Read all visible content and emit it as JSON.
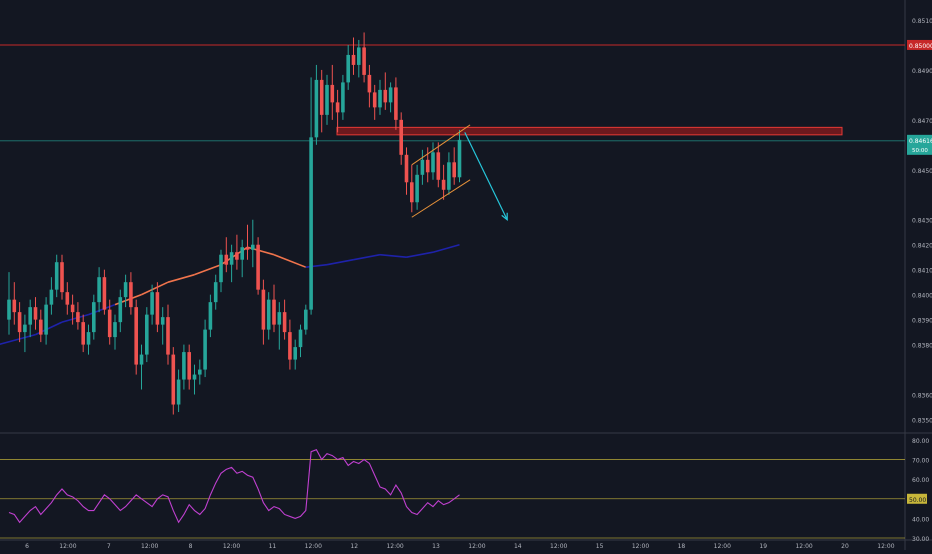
{
  "chart_data": [
    {
      "type": "candlestick",
      "panel": "price",
      "grid": false,
      "y_axis_side": "right",
      "ylim": [
        0.8345,
        0.8518
      ],
      "y_ticks": [
        "0.85100",
        "0.84900",
        "0.84700",
        "0.84500",
        "0.84300",
        "0.84200",
        "0.84100",
        "0.84000",
        "0.83900",
        "0.83800",
        "0.83600",
        "0.83500"
      ],
      "x_ticks": [
        "6",
        "12:00",
        "7",
        "12:00",
        "8",
        "12:00",
        "11",
        "12:00",
        "12",
        "12:00",
        "13",
        "12:00",
        "14",
        "12:00",
        "15",
        "12:00",
        "18",
        "12:00",
        "19",
        "12:00",
        "20",
        "12:00"
      ],
      "price_labels": {
        "resistance": "0.85000",
        "last": "0.84616",
        "countdown": "50:00"
      },
      "horizontal_levels": [
        0.85,
        0.84616
      ],
      "resistance_zone": [
        0.8464,
        0.8467
      ],
      "candles": [
        [
          0,
          0.839,
          0.8409,
          0.8384,
          0.8398
        ],
        [
          1,
          0.8398,
          0.8405,
          0.8388,
          0.8393
        ],
        [
          2,
          0.8393,
          0.8397,
          0.8381,
          0.8385
        ],
        [
          3,
          0.8385,
          0.8392,
          0.8377,
          0.8388
        ],
        [
          4,
          0.8388,
          0.8398,
          0.8383,
          0.8395
        ],
        [
          5,
          0.8395,
          0.8399,
          0.8386,
          0.839
        ],
        [
          6,
          0.839,
          0.8394,
          0.8381,
          0.8384
        ],
        [
          7,
          0.8384,
          0.8399,
          0.838,
          0.8396
        ],
        [
          8,
          0.8396,
          0.8407,
          0.8392,
          0.8402
        ],
        [
          9,
          0.8402,
          0.8416,
          0.8399,
          0.8413
        ],
        [
          10,
          0.8413,
          0.8416,
          0.8398,
          0.8401
        ],
        [
          11,
          0.8401,
          0.8405,
          0.8392,
          0.8396
        ],
        [
          12,
          0.8396,
          0.84,
          0.8388,
          0.8393
        ],
        [
          13,
          0.8393,
          0.8397,
          0.8386,
          0.8389
        ],
        [
          14,
          0.8389,
          0.8392,
          0.8377,
          0.838
        ],
        [
          15,
          0.838,
          0.8388,
          0.8376,
          0.8385
        ],
        [
          16,
          0.8385,
          0.84,
          0.8382,
          0.8397
        ],
        [
          17,
          0.8397,
          0.8411,
          0.8393,
          0.8407
        ],
        [
          18,
          0.8407,
          0.841,
          0.8392,
          0.8394
        ],
        [
          19,
          0.8394,
          0.8398,
          0.838,
          0.8383
        ],
        [
          20,
          0.8383,
          0.8392,
          0.8378,
          0.8389
        ],
        [
          21,
          0.8389,
          0.8402,
          0.8385,
          0.8399
        ],
        [
          22,
          0.8399,
          0.8408,
          0.8395,
          0.8405
        ],
        [
          23,
          0.8405,
          0.8409,
          0.8392,
          0.8395
        ],
        [
          24,
          0.8395,
          0.8398,
          0.8368,
          0.8372
        ],
        [
          25,
          0.8372,
          0.838,
          0.8362,
          0.8376
        ],
        [
          26,
          0.8376,
          0.8395,
          0.8373,
          0.8392
        ],
        [
          27,
          0.8392,
          0.8404,
          0.8388,
          0.8401
        ],
        [
          28,
          0.8401,
          0.8405,
          0.8385,
          0.8388
        ],
        [
          29,
          0.8388,
          0.8395,
          0.838,
          0.8391
        ],
        [
          30,
          0.8391,
          0.8396,
          0.8372,
          0.8376
        ],
        [
          31,
          0.8376,
          0.8379,
          0.8352,
          0.8356
        ],
        [
          32,
          0.8356,
          0.837,
          0.8353,
          0.8366
        ],
        [
          33,
          0.8366,
          0.838,
          0.8362,
          0.8377
        ],
        [
          34,
          0.8377,
          0.838,
          0.8362,
          0.8366
        ],
        [
          35,
          0.8366,
          0.8372,
          0.836,
          0.8368
        ],
        [
          36,
          0.8368,
          0.8374,
          0.8364,
          0.837
        ],
        [
          37,
          0.837,
          0.839,
          0.8367,
          0.8386
        ],
        [
          38,
          0.8386,
          0.84,
          0.8383,
          0.8397
        ],
        [
          39,
          0.8397,
          0.8408,
          0.8394,
          0.8405
        ],
        [
          40,
          0.8405,
          0.8418,
          0.8401,
          0.8416
        ],
        [
          41,
          0.8416,
          0.8423,
          0.8409,
          0.8412
        ],
        [
          42,
          0.8412,
          0.842,
          0.8405,
          0.8417
        ],
        [
          43,
          0.8417,
          0.8424,
          0.841,
          0.8414
        ],
        [
          44,
          0.8414,
          0.8422,
          0.8407,
          0.8419
        ],
        [
          45,
          0.8419,
          0.8428,
          0.8414,
          0.8418
        ],
        [
          46,
          0.8418,
          0.843,
          0.8411,
          0.842
        ],
        [
          47,
          0.842,
          0.8423,
          0.84,
          0.8402
        ],
        [
          48,
          0.8402,
          0.8406,
          0.838,
          0.8386
        ],
        [
          49,
          0.8386,
          0.8401,
          0.8382,
          0.8398
        ],
        [
          50,
          0.8398,
          0.8404,
          0.8385,
          0.8388
        ],
        [
          51,
          0.8388,
          0.8397,
          0.8378,
          0.8393
        ],
        [
          52,
          0.8393,
          0.8398,
          0.8382,
          0.8385
        ],
        [
          53,
          0.8385,
          0.839,
          0.837,
          0.8374
        ],
        [
          54,
          0.8374,
          0.8382,
          0.837,
          0.8379
        ],
        [
          55,
          0.8379,
          0.8388,
          0.8375,
          0.8386
        ],
        [
          56,
          0.8386,
          0.8396,
          0.8384,
          0.8394
        ],
        [
          57,
          0.8394,
          0.8487,
          0.8392,
          0.8463
        ],
        [
          58,
          0.8463,
          0.8492,
          0.846,
          0.8486
        ],
        [
          59,
          0.8486,
          0.849,
          0.8465,
          0.8472
        ],
        [
          60,
          0.8472,
          0.8488,
          0.8468,
          0.8484
        ],
        [
          61,
          0.8484,
          0.8492,
          0.847,
          0.8477
        ],
        [
          62,
          0.8477,
          0.8482,
          0.8465,
          0.8473
        ],
        [
          63,
          0.8473,
          0.8488,
          0.847,
          0.8485
        ],
        [
          64,
          0.8485,
          0.85,
          0.8482,
          0.8496
        ],
        [
          65,
          0.8496,
          0.8503,
          0.8488,
          0.8492
        ],
        [
          66,
          0.8492,
          0.8502,
          0.8487,
          0.8499
        ],
        [
          67,
          0.8499,
          0.8505,
          0.8485,
          0.8488
        ],
        [
          68,
          0.8488,
          0.8492,
          0.8475,
          0.8481
        ],
        [
          69,
          0.8481,
          0.8484,
          0.847,
          0.8475
        ],
        [
          70,
          0.8475,
          0.8486,
          0.8472,
          0.8482
        ],
        [
          71,
          0.8482,
          0.8489,
          0.8474,
          0.8477
        ],
        [
          72,
          0.8477,
          0.8485,
          0.8473,
          0.8483
        ],
        [
          73,
          0.8483,
          0.8487,
          0.8466,
          0.847
        ],
        [
          74,
          0.847,
          0.8473,
          0.8452,
          0.8456
        ],
        [
          75,
          0.8456,
          0.8459,
          0.844,
          0.8445
        ],
        [
          76,
          0.8445,
          0.8452,
          0.8433,
          0.8437
        ],
        [
          77,
          0.8437,
          0.8452,
          0.8434,
          0.8448
        ],
        [
          78,
          0.8448,
          0.8458,
          0.8444,
          0.8454
        ],
        [
          79,
          0.8454,
          0.8459,
          0.8445,
          0.8449
        ],
        [
          80,
          0.8449,
          0.8461,
          0.8446,
          0.8457
        ],
        [
          81,
          0.8457,
          0.8461,
          0.8443,
          0.8446
        ],
        [
          82,
          0.8446,
          0.8452,
          0.8438,
          0.8442
        ],
        [
          83,
          0.8442,
          0.8457,
          0.844,
          0.8453
        ],
        [
          84,
          0.8453,
          0.8459,
          0.8444,
          0.8447
        ],
        [
          85,
          0.8447,
          0.8466,
          0.8445,
          0.8462
        ]
      ],
      "moving_average": {
        "colors": [
          "#1e22aa",
          "#f0744c"
        ],
        "points": [
          [
            -2,
            0.838
          ],
          [
            5,
            0.8384
          ],
          [
            10,
            0.8389
          ],
          [
            15,
            0.8392
          ],
          [
            20,
            0.8396
          ],
          [
            25,
            0.84
          ],
          [
            30,
            0.8405
          ],
          [
            35,
            0.8408
          ],
          [
            40,
            0.8412
          ],
          [
            45,
            0.8419
          ],
          [
            50,
            0.8416
          ],
          [
            56,
            0.8411
          ],
          [
            60,
            0.8412
          ],
          [
            65,
            0.8414
          ],
          [
            70,
            0.8416
          ],
          [
            75,
            0.8415
          ],
          [
            80,
            0.8417
          ],
          [
            85,
            0.842
          ]
        ]
      },
      "channel": {
        "upper": [
          [
            76,
            0.8452
          ],
          [
            87,
            0.8468
          ]
        ],
        "lower": [
          [
            76,
            0.8431
          ],
          [
            87,
            0.8446
          ]
        ]
      },
      "forecast_arrow": [
        [
          86,
          0.8465
        ],
        [
          94,
          0.843
        ]
      ]
    },
    {
      "type": "line",
      "panel": "oscillator",
      "ylim": [
        30,
        82
      ],
      "y_ticks": [
        "80.00",
        "70.00",
        "60.00",
        "50.00",
        "40.00",
        "30.00"
      ],
      "reference_levels": [
        70,
        50,
        30
      ],
      "highlighted_label": "50.00",
      "color": "#c040d0",
      "values": [
        43,
        42,
        38,
        41,
        44,
        46,
        42,
        45,
        48,
        52,
        55,
        52,
        51,
        49,
        46,
        44,
        44,
        48,
        52,
        50,
        47,
        44,
        46,
        49,
        52,
        50,
        48,
        46,
        50,
        52,
        51,
        44,
        38,
        42,
        47,
        44,
        42,
        45,
        52,
        58,
        63,
        65,
        66,
        63,
        64,
        62,
        61,
        55,
        48,
        44,
        46,
        45,
        42,
        41,
        40,
        41,
        44,
        74,
        75,
        70,
        73,
        72,
        70,
        71,
        67,
        69,
        68,
        70,
        68,
        62,
        56,
        55,
        52,
        57,
        53,
        46,
        43,
        42,
        45,
        48,
        46,
        49,
        47,
        48,
        50,
        52
      ]
    }
  ]
}
